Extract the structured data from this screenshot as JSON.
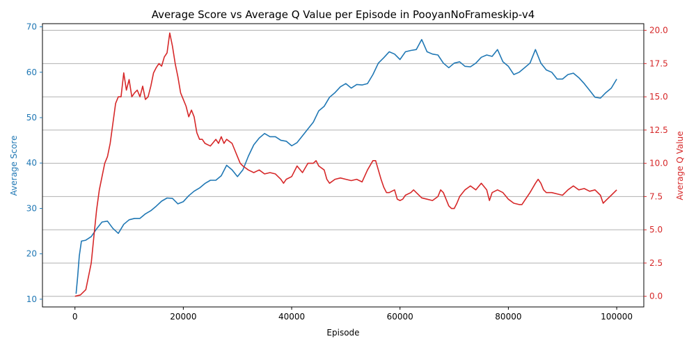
{
  "chart_data": {
    "type": "line",
    "title": "Average Score vs Average Q Value per Episode in PooyanNoFrameskip-v4",
    "xlabel": "Episode",
    "ylabel_left": "Average Score",
    "ylabel_right": "Average Q Value",
    "xlim": [
      -6000,
      105000
    ],
    "ylim_left": [
      8.3,
      70.7
    ],
    "ylim_right": [
      -0.8,
      20.5
    ],
    "x_ticks": [
      0,
      20000,
      40000,
      60000,
      80000,
      100000
    ],
    "x_tick_labels": [
      "0",
      "20000",
      "40000",
      "60000",
      "80000",
      "100000"
    ],
    "y_left_ticks": [
      10,
      20,
      30,
      40,
      50,
      60,
      70
    ],
    "y_left_tick_labels": [
      "10",
      "20",
      "30",
      "40",
      "50",
      "60",
      "70"
    ],
    "y_right_ticks": [
      0,
      2.5,
      5,
      7.5,
      10,
      12.5,
      15,
      17.5,
      20
    ],
    "y_right_tick_labels": [
      "0.0",
      "2.5",
      "5.0",
      "7.5",
      "10.0",
      "12.5",
      "15.0",
      "17.5",
      "20.0"
    ],
    "grid": "horizontal lines at right-axis ticks",
    "colors": {
      "score": "#1f77b4",
      "q": "#d62728",
      "grid": "#b0b0b0",
      "axis": "#000000"
    },
    "series": [
      {
        "axis": "left",
        "color": "#1f77b4",
        "points": [
          [
            200,
            11.2
          ],
          [
            500,
            15
          ],
          [
            800,
            19.5
          ],
          [
            1200,
            22.8
          ],
          [
            2000,
            23
          ],
          [
            3000,
            23.8
          ],
          [
            4000,
            25.5
          ],
          [
            5000,
            27
          ],
          [
            6000,
            27.2
          ],
          [
            7000,
            25.6
          ],
          [
            8000,
            24.5
          ],
          [
            9000,
            26.5
          ],
          [
            10000,
            27.5
          ],
          [
            11000,
            27.8
          ],
          [
            12000,
            27.8
          ],
          [
            13000,
            28.8
          ],
          [
            14000,
            29.5
          ],
          [
            15000,
            30.5
          ],
          [
            16000,
            31.6
          ],
          [
            17000,
            32.3
          ],
          [
            18000,
            32.2
          ],
          [
            19000,
            31
          ],
          [
            20000,
            31.5
          ],
          [
            21000,
            32.8
          ],
          [
            22000,
            33.8
          ],
          [
            23000,
            34.5
          ],
          [
            24000,
            35.5
          ],
          [
            25000,
            36.2
          ],
          [
            26000,
            36.2
          ],
          [
            27000,
            37.2
          ],
          [
            28000,
            39.5
          ],
          [
            29000,
            38.5
          ],
          [
            30000,
            37
          ],
          [
            31000,
            38.5
          ],
          [
            32000,
            41.5
          ],
          [
            33000,
            44
          ],
          [
            34000,
            45.5
          ],
          [
            35000,
            46.5
          ],
          [
            36000,
            45.8
          ],
          [
            37000,
            45.8
          ],
          [
            38000,
            45
          ],
          [
            39000,
            44.8
          ],
          [
            40000,
            43.8
          ],
          [
            41000,
            44.5
          ],
          [
            42000,
            46
          ],
          [
            43000,
            47.5
          ],
          [
            44000,
            49
          ],
          [
            45000,
            51.5
          ],
          [
            46000,
            52.5
          ],
          [
            47000,
            54.5
          ],
          [
            48000,
            55.5
          ],
          [
            49000,
            56.8
          ],
          [
            50000,
            57.5
          ],
          [
            51000,
            56.5
          ],
          [
            52000,
            57.3
          ],
          [
            53000,
            57.2
          ],
          [
            54000,
            57.5
          ],
          [
            55000,
            59.5
          ],
          [
            56000,
            62
          ],
          [
            57000,
            63.2
          ],
          [
            58000,
            64.5
          ],
          [
            59000,
            64
          ],
          [
            60000,
            62.8
          ],
          [
            61000,
            64.5
          ],
          [
            62000,
            64.8
          ],
          [
            63000,
            65
          ],
          [
            64000,
            67.2
          ],
          [
            65000,
            64.5
          ],
          [
            66000,
            64
          ],
          [
            67000,
            63.8
          ],
          [
            68000,
            62
          ],
          [
            69000,
            61
          ],
          [
            70000,
            62
          ],
          [
            71000,
            62.3
          ],
          [
            72000,
            61.3
          ],
          [
            73000,
            61.2
          ],
          [
            74000,
            62
          ],
          [
            75000,
            63.3
          ],
          [
            76000,
            63.8
          ],
          [
            77000,
            63.5
          ],
          [
            78000,
            65
          ],
          [
            79000,
            62.3
          ],
          [
            80000,
            61.3
          ],
          [
            81000,
            59.5
          ],
          [
            82000,
            60
          ],
          [
            83000,
            61
          ],
          [
            84000,
            62
          ],
          [
            85000,
            65
          ],
          [
            86000,
            62
          ],
          [
            87000,
            60.5
          ],
          [
            88000,
            60
          ],
          [
            89000,
            58.5
          ],
          [
            90000,
            58.5
          ],
          [
            91000,
            59.5
          ],
          [
            92000,
            59.8
          ],
          [
            93000,
            58.8
          ],
          [
            94000,
            57.5
          ],
          [
            95000,
            56
          ],
          [
            96000,
            54.5
          ],
          [
            97000,
            54.3
          ],
          [
            98000,
            55.5
          ],
          [
            99000,
            56.5
          ],
          [
            100000,
            58.5
          ]
        ]
      },
      {
        "axis": "right",
        "color": "#d62728",
        "points": [
          [
            0,
            0
          ],
          [
            1000,
            0.1
          ],
          [
            2000,
            0.5
          ],
          [
            2500,
            1.5
          ],
          [
            3000,
            2.5
          ],
          [
            3500,
            4.5
          ],
          [
            4000,
            6.5
          ],
          [
            4500,
            8
          ],
          [
            5000,
            9
          ],
          [
            5500,
            10
          ],
          [
            6000,
            10.5
          ],
          [
            6500,
            11.5
          ],
          [
            7000,
            13
          ],
          [
            7500,
            14.5
          ],
          [
            8000,
            15
          ],
          [
            8500,
            15
          ],
          [
            9000,
            16.8
          ],
          [
            9500,
            15.5
          ],
          [
            10000,
            16.3
          ],
          [
            10500,
            15
          ],
          [
            11000,
            15.3
          ],
          [
            11500,
            15.5
          ],
          [
            12000,
            15
          ],
          [
            12500,
            15.8
          ],
          [
            13000,
            14.8
          ],
          [
            13500,
            15
          ],
          [
            14000,
            15.8
          ],
          [
            14500,
            16.8
          ],
          [
            15000,
            17.2
          ],
          [
            15500,
            17.5
          ],
          [
            16000,
            17.3
          ],
          [
            16500,
            18
          ],
          [
            17000,
            18.3
          ],
          [
            17500,
            19.8
          ],
          [
            18000,
            18.8
          ],
          [
            18500,
            17.5
          ],
          [
            19000,
            16.5
          ],
          [
            19500,
            15.3
          ],
          [
            20000,
            14.8
          ],
          [
            20500,
            14.3
          ],
          [
            21000,
            13.5
          ],
          [
            21500,
            14
          ],
          [
            22000,
            13.5
          ],
          [
            22500,
            12.3
          ],
          [
            23000,
            11.8
          ],
          [
            23500,
            11.8
          ],
          [
            24000,
            11.5
          ],
          [
            25000,
            11.3
          ],
          [
            26000,
            11.8
          ],
          [
            26500,
            11.5
          ],
          [
            27000,
            12
          ],
          [
            27500,
            11.5
          ],
          [
            28000,
            11.8
          ],
          [
            29000,
            11.5
          ],
          [
            29500,
            11
          ],
          [
            30000,
            10.5
          ],
          [
            30500,
            10
          ],
          [
            31000,
            9.8
          ],
          [
            32000,
            9.5
          ],
          [
            33000,
            9.3
          ],
          [
            34000,
            9.5
          ],
          [
            35000,
            9.2
          ],
          [
            36000,
            9.3
          ],
          [
            37000,
            9.2
          ],
          [
            38000,
            8.8
          ],
          [
            38500,
            8.5
          ],
          [
            39000,
            8.8
          ],
          [
            40000,
            9
          ],
          [
            41000,
            9.8
          ],
          [
            42000,
            9.3
          ],
          [
            43000,
            10
          ],
          [
            44000,
            10
          ],
          [
            44500,
            10.2
          ],
          [
            45000,
            9.8
          ],
          [
            46000,
            9.5
          ],
          [
            46500,
            8.8
          ],
          [
            47000,
            8.5
          ],
          [
            48000,
            8.8
          ],
          [
            49000,
            8.9
          ],
          [
            50000,
            8.8
          ],
          [
            51000,
            8.7
          ],
          [
            52000,
            8.8
          ],
          [
            53000,
            8.6
          ],
          [
            54000,
            9.5
          ],
          [
            55000,
            10.2
          ],
          [
            55500,
            10.2
          ],
          [
            56000,
            9.5
          ],
          [
            56500,
            8.8
          ],
          [
            57000,
            8.2
          ],
          [
            57500,
            7.8
          ],
          [
            58000,
            7.8
          ],
          [
            59000,
            8
          ],
          [
            59500,
            7.3
          ],
          [
            60000,
            7.2
          ],
          [
            60500,
            7.3
          ],
          [
            61000,
            7.6
          ],
          [
            62000,
            7.8
          ],
          [
            62500,
            8
          ],
          [
            63000,
            7.8
          ],
          [
            64000,
            7.4
          ],
          [
            65000,
            7.3
          ],
          [
            66000,
            7.2
          ],
          [
            67000,
            7.5
          ],
          [
            67500,
            8
          ],
          [
            68000,
            7.8
          ],
          [
            68500,
            7.3
          ],
          [
            69000,
            6.8
          ],
          [
            69500,
            6.6
          ],
          [
            70000,
            6.6
          ],
          [
            70500,
            7
          ],
          [
            71000,
            7.5
          ],
          [
            72000,
            8
          ],
          [
            73000,
            8.3
          ],
          [
            74000,
            8
          ],
          [
            75000,
            8.5
          ],
          [
            76000,
            8
          ],
          [
            76500,
            7.2
          ],
          [
            77000,
            7.8
          ],
          [
            78000,
            8
          ],
          [
            79000,
            7.8
          ],
          [
            80000,
            7.3
          ],
          [
            81000,
            7
          ],
          [
            82000,
            6.9
          ],
          [
            82500,
            6.9
          ],
          [
            83000,
            7.2
          ],
          [
            84000,
            7.8
          ],
          [
            85000,
            8.5
          ],
          [
            85500,
            8.8
          ],
          [
            86000,
            8.5
          ],
          [
            86500,
            8
          ],
          [
            87000,
            7.8
          ],
          [
            88000,
            7.8
          ],
          [
            89000,
            7.7
          ],
          [
            90000,
            7.6
          ],
          [
            90500,
            7.8
          ],
          [
            91000,
            8
          ],
          [
            92000,
            8.3
          ],
          [
            93000,
            8
          ],
          [
            94000,
            8.1
          ],
          [
            95000,
            7.9
          ],
          [
            96000,
            8
          ],
          [
            97000,
            7.6
          ],
          [
            97500,
            7
          ],
          [
            98000,
            7.2
          ],
          [
            99000,
            7.6
          ],
          [
            100000,
            8
          ]
        ]
      }
    ]
  }
}
